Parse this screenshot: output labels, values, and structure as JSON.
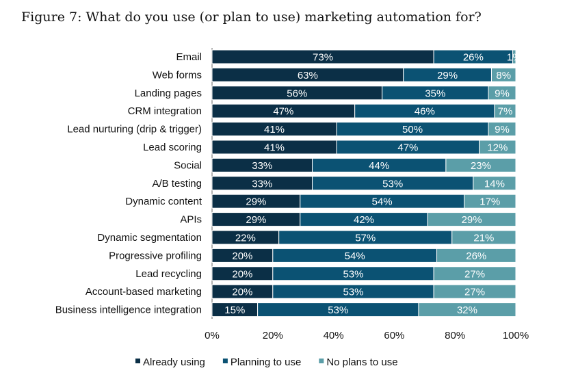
{
  "chart_data": {
    "type": "bar",
    "orientation": "horizontal",
    "stacked": true,
    "title": "Figure 7: What do you use (or plan to use) marketing automation for?",
    "categories": [
      "Email",
      "Web forms",
      "Landing pages",
      "CRM integration",
      "Lead nurturing (drip & trigger)",
      "Lead scoring",
      "Social",
      "A/B testing",
      "Dynamic content",
      "APIs",
      "Dynamic segmentation",
      "Progressive profiling",
      "Lead recycling",
      "Account-based marketing",
      "Business intelligence integration"
    ],
    "series": [
      {
        "name": "Already using",
        "color": "#0b2f46",
        "values": [
          73,
          63,
          56,
          47,
          41,
          41,
          33,
          33,
          29,
          29,
          22,
          20,
          20,
          20,
          15
        ]
      },
      {
        "name": "Planning to use",
        "color": "#0b5273",
        "values": [
          26,
          29,
          35,
          46,
          50,
          47,
          44,
          53,
          54,
          42,
          57,
          54,
          53,
          53,
          53
        ]
      },
      {
        "name": "No plans to use",
        "color": "#5b9ea8",
        "values": [
          1,
          8,
          9,
          7,
          9,
          12,
          23,
          14,
          17,
          29,
          21,
          26,
          27,
          27,
          32
        ]
      }
    ],
    "xlim": [
      0,
      100
    ],
    "xticks": [
      "0%",
      "20%",
      "40%",
      "60%",
      "80%",
      "100%"
    ],
    "legend": "bottom",
    "grid": false
  }
}
